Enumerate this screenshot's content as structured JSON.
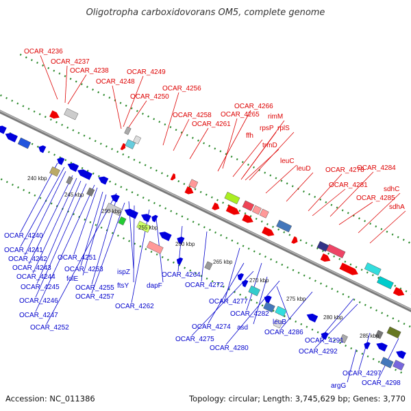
{
  "title": "Oligotropha carboxidovorans OM5, complete genome",
  "footer": {
    "accession": "Accession: NC_011386",
    "summary": "Topology: circular; Length: 3,745,629 bp; Genes: 3,770"
  },
  "colors": {
    "forward_label": "#dd0000",
    "reverse_label": "#0000cc",
    "backbone": "#7a7a7a",
    "dotted_track": "#2e8b2e"
  },
  "ticks": [
    "240 kbp",
    "245 kbp",
    "250 kbp",
    "255 kbp",
    "260 kbp",
    "265 kbp",
    "270 kbp",
    "275 kbp",
    "280 kbp",
    "285 kbp"
  ],
  "forward_genes": [
    "OCAR_4236",
    "OCAR_4237",
    "OCAR_4238",
    "OCAR_4249",
    "OCAR_4248",
    "OCAR_4256",
    "OCAR_4250",
    "OCAR_4266",
    "OCAR_4258",
    "OCAR_4265",
    "OCAR_4261",
    "rimM",
    "rpsP",
    "rplS",
    "ffh",
    "trmD",
    "leuC",
    "leuD",
    "OCAR_4278",
    "OCAR_4284",
    "OCAR_4281",
    "sdhC",
    "OCAR_4285",
    "sdhA"
  ],
  "reverse_genes": [
    "OCAR_4240",
    "OCAR_4241",
    "OCAR_4242",
    "OCAR_4243",
    "OCAR_4244",
    "OCAR_4245",
    "OCAR_4246",
    "OCAR_4247",
    "OCAR_4252",
    "OCAR_4251",
    "OCAR_4253",
    "folE",
    "OCAR_4255",
    "OCAR_4257",
    "ispZ",
    "ftsY",
    "dapF",
    "OCAR_4262",
    "OCAR_4264",
    "OCAR_4272",
    "OCAR_4277",
    "OCAR_4274",
    "OCAR_4282",
    "OCAR_4275",
    "asd",
    "OCAR_4280",
    "leuB",
    "OCAR_4286",
    "OCAR_4291",
    "OCAR_4292",
    "OCAR_4297",
    "argG",
    "OCAR_4298"
  ]
}
